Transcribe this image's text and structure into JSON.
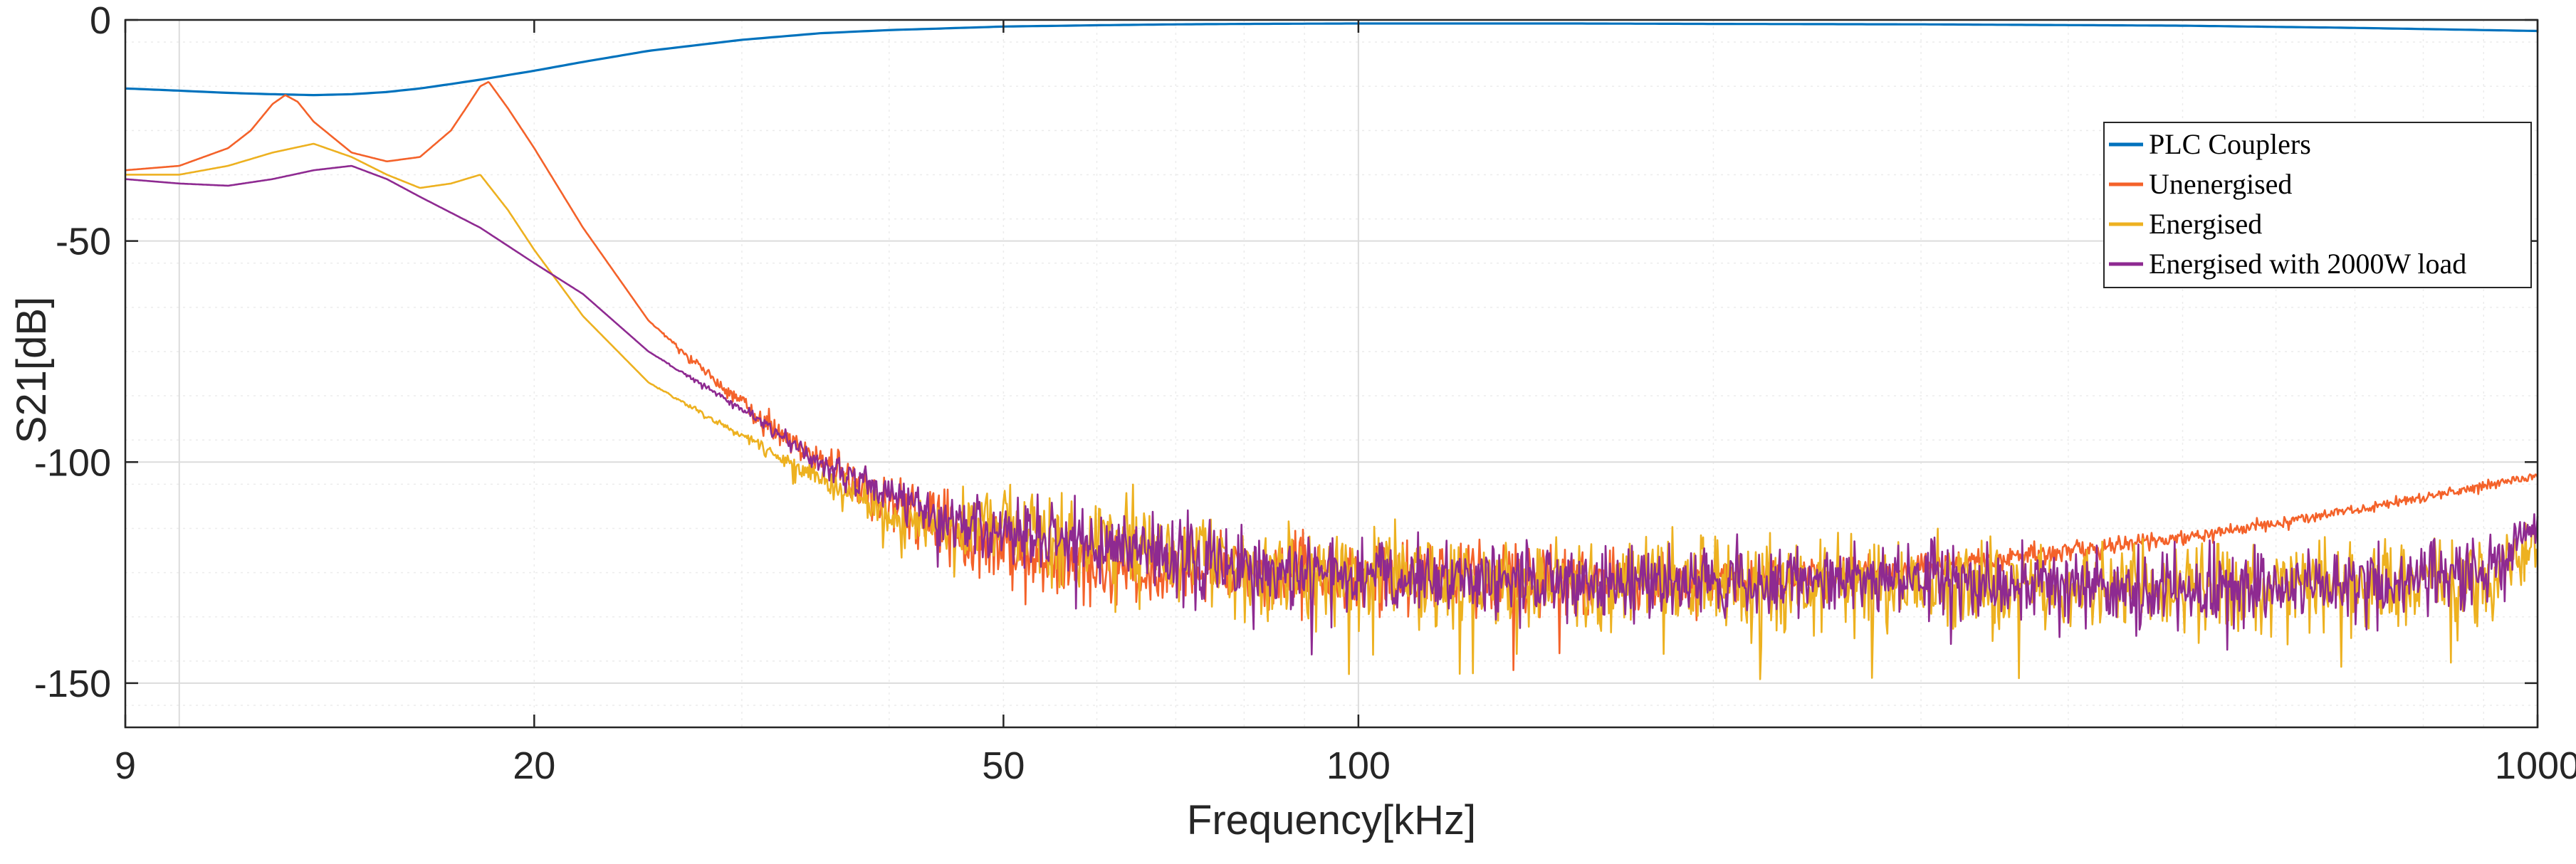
{
  "chart_data": {
    "type": "line",
    "title": "",
    "xlabel": "Frequency[kHz]",
    "ylabel": "S21[dB]",
    "xscale": "log",
    "xlim": [
      9,
      1000
    ],
    "ylim": [
      -160,
      0
    ],
    "xticks": [
      9,
      20,
      50,
      100,
      1000
    ],
    "xtick_labels": [
      "9",
      "20",
      "50",
      "100",
      "1000"
    ],
    "yticks": [
      0,
      -50,
      -100,
      -150
    ],
    "ytick_labels": [
      "0",
      "-50",
      "-100",
      "-150"
    ],
    "grid": true,
    "minor_grid": true,
    "legend_position": "top-right",
    "series": [
      {
        "name": "PLC Couplers",
        "color": "#0072BD",
        "x": [
          9,
          10,
          11,
          12,
          13,
          14,
          15,
          16,
          17,
          18,
          20,
          22,
          25,
          30,
          35,
          40,
          50,
          60,
          70,
          80,
          100,
          150,
          200,
          300,
          500,
          700,
          1000
        ],
        "y": [
          -15.5,
          -16,
          -16.5,
          -16.8,
          -17,
          -16.8,
          -16.3,
          -15.5,
          -14.5,
          -13.5,
          -11.5,
          -9.5,
          -7,
          -4.5,
          -3,
          -2.3,
          -1.5,
          -1.2,
          -1,
          -0.9,
          -0.8,
          -0.8,
          -0.9,
          -1,
          -1.3,
          -1.8,
          -2.5
        ]
      },
      {
        "name": "Unenergised",
        "color": "#F4622A",
        "x": [
          9,
          10,
          11,
          11.5,
          12,
          12.3,
          12.6,
          13,
          14,
          15,
          16,
          17,
          17.5,
          18,
          18.3,
          19,
          20,
          22,
          25,
          30,
          35,
          40,
          45,
          50,
          60,
          80,
          100,
          150,
          200,
          300,
          400,
          500,
          700,
          1000
        ],
        "y": [
          -34,
          -33,
          -29,
          -25,
          -19,
          -17,
          -18.5,
          -23,
          -30,
          -32,
          -31,
          -25,
          -20,
          -15,
          -14,
          -20,
          -29,
          -47,
          -68,
          -87,
          -100,
          -109,
          -116,
          -120,
          -124,
          -125,
          -126,
          -127,
          -127,
          -124,
          -120,
          -117,
          -111,
          -103
        ],
        "noise": [
          0,
          0,
          0,
          0,
          0,
          0,
          0,
          0,
          0,
          0,
          0,
          0,
          0,
          0,
          0,
          0,
          0,
          0,
          0,
          2,
          4,
          6,
          8,
          8,
          8,
          8,
          8,
          7,
          5,
          3,
          2,
          1.5,
          1.2,
          1
        ]
      },
      {
        "name": "Energised",
        "color": "#EDB120",
        "x": [
          9,
          10,
          11,
          12,
          13,
          14,
          15,
          16,
          17,
          18,
          19,
          20,
          22,
          25,
          30,
          35,
          40,
          45,
          50,
          60,
          80,
          100,
          150,
          200,
          300,
          500,
          700,
          900,
          950,
          1000
        ],
        "y": [
          -35,
          -35,
          -33,
          -30,
          -28,
          -31,
          -35,
          -38,
          -37,
          -35,
          -43,
          -52,
          -67,
          -82,
          -94,
          -104,
          -112,
          -115,
          -114,
          -118,
          -124,
          -126,
          -127,
          -127,
          -128,
          -128,
          -128,
          -127,
          -122,
          -118
        ],
        "noise": [
          0,
          0,
          0,
          0,
          0,
          0,
          0,
          0,
          0,
          0,
          0,
          0,
          0,
          0,
          1,
          3,
          5,
          7,
          8,
          10,
          10,
          10,
          10,
          10,
          10,
          10,
          10,
          10,
          6,
          5
        ]
      },
      {
        "name": "Energised with 2000W load",
        "color": "#8E2A91",
        "x": [
          9,
          10,
          11,
          12,
          13,
          14,
          15,
          16,
          18,
          20,
          22,
          25,
          30,
          35,
          40,
          45,
          50,
          60,
          80,
          100,
          150,
          200,
          300,
          500,
          700,
          900,
          950,
          1000
        ],
        "y": [
          -36,
          -37,
          -37.5,
          -36,
          -34,
          -33,
          -36,
          -40,
          -47,
          -55,
          -62,
          -75,
          -88,
          -100,
          -108,
          -113,
          -116,
          -118,
          -124,
          -126,
          -127,
          -127,
          -127,
          -128,
          -128,
          -125,
          -120,
          -113
        ],
        "noise": [
          0,
          0,
          0,
          0,
          0,
          0,
          0,
          0,
          0,
          0,
          0,
          0,
          1,
          3,
          5,
          6,
          7,
          8,
          8,
          8,
          8,
          8,
          8,
          8,
          8,
          7,
          5,
          4
        ]
      }
    ]
  }
}
